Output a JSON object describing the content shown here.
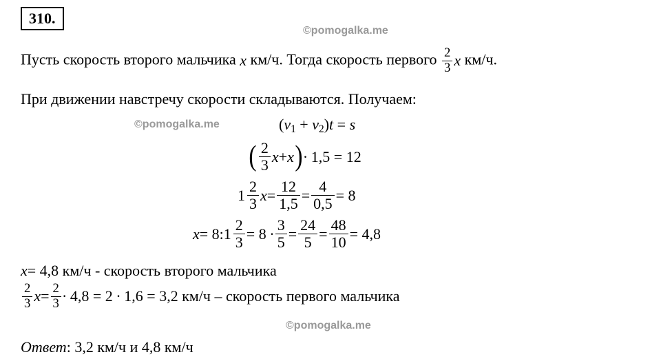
{
  "problem_number": "310.",
  "watermark": "©pomogalka.me",
  "para1_pre": "Пусть скорость второго мальчика ",
  "x": "x",
  "kmh": " км/ч",
  "para1_mid": ". Тогда скорость первого ",
  "fr23_n": "2",
  "fr23_d": "3",
  "para1_post": " км/ч.",
  "para2": "При движении навстречу скорости складываются. Получаем:",
  "eq1_l": "(",
  "eq1_v1": "v",
  "eq1_s1": "1",
  "eq1_plus": " + ",
  "eq1_v2": "v",
  "eq1_s2": "2",
  "eq1_r": ")",
  "eq1_t": "t",
  "eq1_eq": " = ",
  "eq1_s": "s",
  "eq2_plus": " + ",
  "eq2_mult": " ∙ 1,5 = 12",
  "eq3_pre": "",
  "eq3_int": "1",
  "eq3_xeq": " = ",
  "eq3_f1n": "12",
  "eq3_f1d": "1,5",
  "eq3_eq2": " = ",
  "eq3_f2n": "4",
  "eq3_f2d": "0,5",
  "eq3_eq3": " = 8",
  "eq4_xeq": " = 8: ",
  "eq4_int": "1",
  "eq4_eq1": " = 8 ∙ ",
  "eq4_f1n": "3",
  "eq4_f1d": "5",
  "eq4_eq2": " = ",
  "eq4_f2n": "24",
  "eq4_f2d": "5",
  "eq4_eq3": " = ",
  "eq4_f3n": "48",
  "eq4_f3d": "10",
  "eq4_eq4": " = 4,8",
  "res1_txt": " = 4,8 км/ч  - скорость второго мальчика",
  "res2_mid": " ∙ 4,8 = 2 ∙ 1,6 = 3,2 км/ч – скорость первого мальчика",
  "ans_label": "Ответ",
  "ans_colon": ": ",
  "ans_val": "3,2 км/ч и 4,8 км/ч"
}
